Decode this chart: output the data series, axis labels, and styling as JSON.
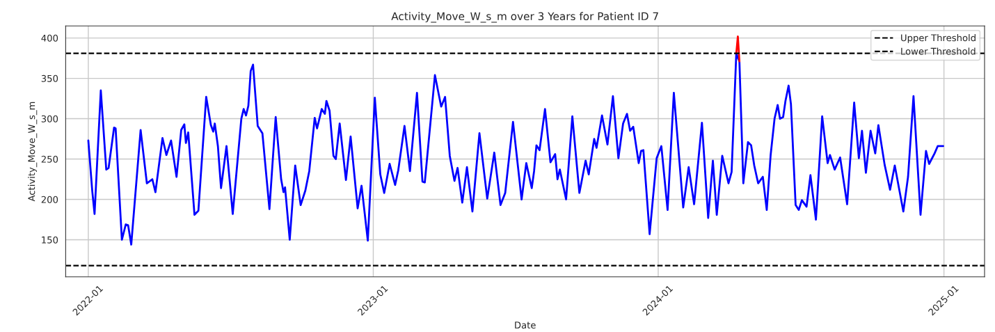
{
  "chart_data": {
    "type": "line",
    "title": "Activity_Move_W_s_m over 3 Years for Patient ID 7",
    "xlabel": "Date",
    "ylabel": "Activity_Move_W_s_m",
    "xlim": [
      "2021-12-03",
      "2025-02-22"
    ],
    "ylim": [
      104,
      415
    ],
    "xticks": [
      {
        "value": "2022-01-01",
        "label": "2022-01"
      },
      {
        "value": "2023-01-01",
        "label": "2023-01"
      },
      {
        "value": "2024-01-01",
        "label": "2024-01"
      },
      {
        "value": "2025-01-01",
        "label": "2025-01"
      }
    ],
    "yticks": [
      150,
      200,
      250,
      300,
      350,
      400
    ],
    "grid": true,
    "legend": "top right",
    "line_style": "solid",
    "marker": "none",
    "series": [
      {
        "color": "#0000ff",
        "x": [
          "2022-01-01",
          "2022-01-06",
          "2022-01-09",
          "2022-01-17",
          "2022-01-24",
          "2022-01-27",
          "2022-02-03",
          "2022-02-05",
          "2022-02-13",
          "2022-02-18",
          "2022-02-21",
          "2022-02-25",
          "2022-03-09",
          "2022-03-17",
          "2022-03-24",
          "2022-03-28",
          "2022-04-06",
          "2022-04-11",
          "2022-04-17",
          "2022-04-24",
          "2022-04-30",
          "2022-05-04",
          "2022-05-06",
          "2022-05-09",
          "2022-05-17",
          "2022-05-22",
          "2022-06-01",
          "2022-06-07",
          "2022-06-10",
          "2022-06-12",
          "2022-06-16",
          "2022-06-20",
          "2022-06-27",
          "2022-07-05",
          "2022-07-16",
          "2022-07-19",
          "2022-07-22",
          "2022-07-25",
          "2022-07-28",
          "2022-07-31",
          "2022-08-06",
          "2022-08-12",
          "2022-08-21",
          "2022-08-29",
          "2022-09-05",
          "2022-09-08",
          "2022-09-10",
          "2022-09-16",
          "2022-09-23",
          "2022-09-30",
          "2022-10-06",
          "2022-10-11",
          "2022-10-18",
          "2022-10-21",
          "2022-10-27",
          "2022-10-31",
          "2022-11-02",
          "2022-11-06",
          "2022-11-11",
          "2022-11-14",
          "2022-11-19",
          "2022-11-27",
          "2022-12-03",
          "2022-12-12",
          "2022-12-17",
          "2022-12-25",
          "2023-01-03",
          "2023-01-10",
          "2023-01-15",
          "2023-01-22",
          "2023-01-29",
          "2023-02-02",
          "2023-02-10",
          "2023-02-17",
          "2023-02-26",
          "2023-03-05",
          "2023-03-08",
          "2023-03-21",
          "2023-03-29",
          "2023-04-03",
          "2023-04-09",
          "2023-04-15",
          "2023-04-19",
          "2023-04-25",
          "2023-05-01",
          "2023-05-08",
          "2023-05-17",
          "2023-05-27",
          "2023-06-05",
          "2023-06-13",
          "2023-06-19",
          "2023-06-29",
          "2023-07-10",
          "2023-07-16",
          "2023-07-23",
          "2023-07-26",
          "2023-07-29",
          "2023-08-02",
          "2023-08-09",
          "2023-08-16",
          "2023-08-22",
          "2023-08-25",
          "2023-08-28",
          "2023-09-05",
          "2023-09-13",
          "2023-09-22",
          "2023-09-30",
          "2023-10-04",
          "2023-10-11",
          "2023-10-14",
          "2023-10-21",
          "2023-10-28",
          "2023-11-04",
          "2023-11-11",
          "2023-11-17",
          "2023-11-22",
          "2023-11-26",
          "2023-11-30",
          "2023-12-07",
          "2023-12-10",
          "2023-12-13",
          "2023-12-21",
          "2023-12-30",
          "2024-01-05",
          "2024-01-13",
          "2024-01-21",
          "2024-02-02",
          "2024-02-09",
          "2024-02-16",
          "2024-02-26",
          "2024-03-05",
          "2024-03-11",
          "2024-03-16",
          "2024-03-23",
          "2024-03-31",
          "2024-04-04",
          "2024-04-10",
          "2024-04-14",
          "2024-04-19",
          "2024-04-25",
          "2024-04-29",
          "2024-05-03",
          "2024-05-08",
          "2024-05-14",
          "2024-05-19",
          "2024-05-24",
          "2024-05-29",
          "2024-06-02",
          "2024-06-05",
          "2024-06-09",
          "2024-06-12",
          "2024-06-16",
          "2024-06-19",
          "2024-06-25",
          "2024-06-29",
          "2024-07-03",
          "2024-07-09",
          "2024-07-14",
          "2024-07-21",
          "2024-07-29",
          "2024-08-05",
          "2024-08-08",
          "2024-08-14",
          "2024-08-21",
          "2024-08-30",
          "2024-09-08",
          "2024-09-14",
          "2024-09-18",
          "2024-09-23",
          "2024-09-29",
          "2024-10-05",
          "2024-10-09",
          "2024-10-17",
          "2024-10-24",
          "2024-10-30",
          "2024-11-10",
          "2024-11-16",
          "2024-11-23",
          "2024-12-02",
          "2024-12-09",
          "2024-12-13",
          "2024-12-20",
          "2024-12-24",
          "2024-12-31"
        ],
        "values": [
          273,
          211,
          182,
          335,
          237,
          239,
          289,
          288,
          150,
          169,
          168,
          144,
          286,
          220,
          225,
          209,
          276,
          255,
          273,
          228,
          286,
          293,
          270,
          283,
          181,
          186,
          327,
          292,
          284,
          294,
          266,
          214,
          266,
          182,
          300,
          312,
          304,
          316,
          359,
          367,
          291,
          282,
          188,
          302,
          225,
          209,
          215,
          150,
          242,
          193,
          211,
          235,
          301,
          288,
          312,
          306,
          322,
          310,
          254,
          250,
          294,
          224,
          278,
          189,
          217,
          149,
          326,
          231,
          208,
          244,
          218,
          236,
          291,
          235,
          332,
          222,
          221,
          354,
          315,
          327,
          254,
          223,
          239,
          196,
          240,
          185,
          282,
          201,
          258,
          193,
          208,
          296,
          200,
          245,
          214,
          235,
          267,
          261,
          312,
          246,
          256,
          225,
          237,
          200,
          303,
          208,
          248,
          231,
          275,
          264,
          304,
          268,
          328,
          251,
          294,
          306,
          285,
          290,
          245,
          260,
          261,
          157,
          251,
          266,
          187,
          332,
          190,
          240,
          194,
          295,
          177,
          248,
          181,
          254,
          220,
          234,
          381,
          371,
          220,
          271,
          267,
          242,
          220,
          228,
          187,
          255,
          300,
          317,
          300,
          302,
          322,
          341,
          318,
          193,
          187,
          199,
          191,
          230,
          175,
          303,
          245,
          255,
          237,
          252,
          194,
          320,
          251,
          285,
          233,
          285,
          257,
          292,
          243,
          212,
          242,
          185,
          228,
          328,
          181,
          260,
          244,
          257,
          266,
          266
        ]
      },
      {
        "color": "#ff0000",
        "x": [
          "2024-04-10",
          "2024-04-12",
          "2024-04-14"
        ],
        "values": [
          381,
          402,
          371
        ]
      }
    ],
    "ref_lines": [
      {
        "axis": "y",
        "value": 381,
        "label": "Upper Threshold",
        "color": "#000000",
        "line_style": "dashed"
      },
      {
        "axis": "y",
        "value": 118,
        "label": "Lower Threshold",
        "color": "#000000",
        "line_style": "dashed"
      }
    ]
  }
}
